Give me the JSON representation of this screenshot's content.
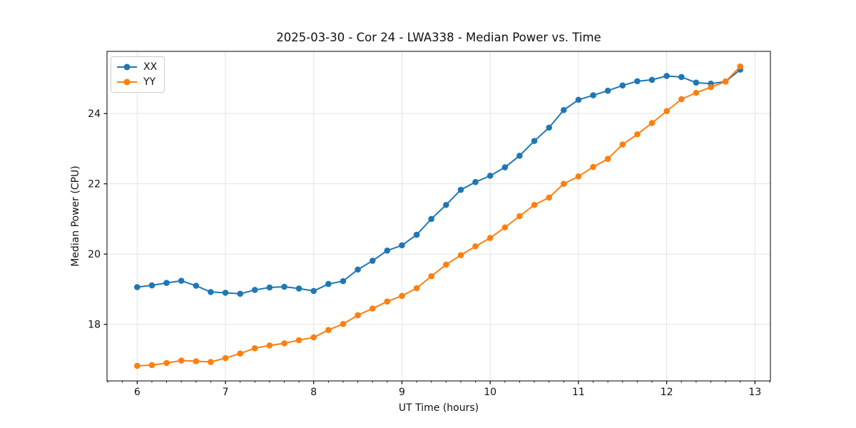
{
  "chart_data": {
    "type": "line",
    "title": "2025-03-30 - Cor 24 - LWA338 - Median Power vs. Time",
    "xlabel": "UT Time (hours)",
    "ylabel": "Median Power (CPU)",
    "xlim": [
      5.658,
      13.175
    ],
    "ylim": [
      16.39,
      25.77
    ],
    "xticks": [
      6,
      7,
      8,
      9,
      10,
      11,
      12,
      13
    ],
    "yticks": [
      18,
      20,
      22,
      24
    ],
    "x_minor_tick_step": 0.1666667,
    "grid": true,
    "grid_color": "#e3e3e3",
    "legend_position": "upper-left",
    "marker": "circle",
    "x": [
      6.0,
      6.167,
      6.333,
      6.5,
      6.667,
      6.833,
      7.0,
      7.167,
      7.333,
      7.5,
      7.667,
      7.833,
      8.0,
      8.167,
      8.333,
      8.5,
      8.667,
      8.833,
      9.0,
      9.167,
      9.333,
      9.5,
      9.667,
      9.833,
      10.0,
      10.167,
      10.333,
      10.5,
      10.667,
      10.833,
      11.0,
      11.167,
      11.333,
      11.5,
      11.667,
      11.833,
      12.0,
      12.167,
      12.333,
      12.5,
      12.667,
      12.833
    ],
    "series": [
      {
        "name": "XX",
        "color": "#1f77b4",
        "values": [
          19.06,
          19.11,
          19.18,
          19.24,
          19.1,
          18.92,
          18.9,
          18.87,
          18.98,
          19.05,
          19.07,
          19.02,
          18.95,
          19.15,
          19.23,
          19.56,
          19.81,
          20.1,
          20.25,
          20.55,
          21.0,
          21.4,
          21.83,
          22.05,
          22.23,
          22.47,
          22.8,
          23.22,
          23.6,
          24.1,
          24.39,
          24.52,
          24.65,
          24.8,
          24.92,
          24.96,
          25.07,
          25.04,
          24.88,
          24.85,
          24.91,
          25.25
        ]
      },
      {
        "name": "YY",
        "color": "#ff7f0e",
        "values": [
          16.82,
          16.84,
          16.9,
          16.97,
          16.95,
          16.93,
          17.04,
          17.17,
          17.32,
          17.4,
          17.46,
          17.55,
          17.63,
          17.84,
          18.01,
          18.26,
          18.45,
          18.65,
          18.81,
          19.03,
          19.37,
          19.7,
          19.97,
          20.22,
          20.46,
          20.76,
          21.08,
          21.4,
          21.61,
          22.0,
          22.21,
          22.48,
          22.71,
          23.12,
          23.41,
          23.73,
          24.07,
          24.41,
          24.59,
          24.75,
          24.91,
          25.34
        ]
      }
    ]
  }
}
